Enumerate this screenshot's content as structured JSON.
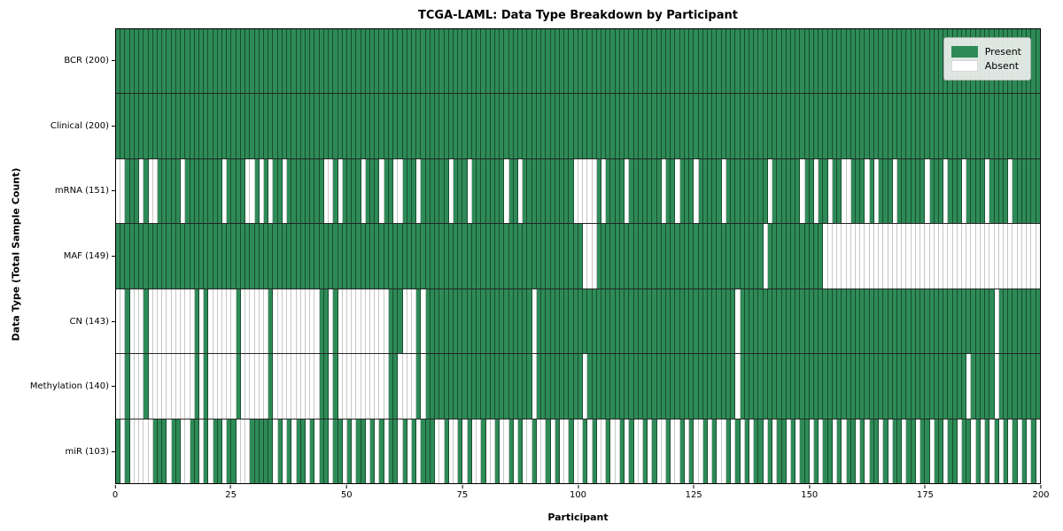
{
  "title": "TCGA-LAML: Data Type Breakdown by Participant",
  "x_axis": {
    "label": "Participant",
    "ticks": [
      0,
      25,
      50,
      75,
      100,
      125,
      150,
      175,
      200
    ],
    "min": 0,
    "max": 200
  },
  "y_axis": {
    "label": "Data Type (Total Sample Count)"
  },
  "legend": {
    "present_label": "Present",
    "absent_label": "Absent"
  },
  "colors": {
    "present": "#2e8b57",
    "absent": "#ffffff"
  },
  "chart_data": {
    "type": "heatmap",
    "title": "TCGA-LAML: Data Type Breakdown by Participant",
    "xlabel": "Participant",
    "ylabel": "Data Type (Total Sample Count)",
    "x_range": [
      0,
      200
    ],
    "x_ticks": [
      0,
      25,
      50,
      75,
      100,
      125,
      150,
      175,
      200
    ],
    "n_participants": 200,
    "legend_entries": [
      "Present",
      "Absent"
    ],
    "legend_position": "upper right",
    "grid": "per-cell vertical gridlines, horizontal row separators",
    "rows": [
      {
        "label": "BCR (200)",
        "data_type": "BCR",
        "present_count": 200,
        "absent_participants": []
      },
      {
        "label": "Clinical (200)",
        "data_type": "Clinical",
        "present_count": 200,
        "absent_participants": []
      },
      {
        "label": "mRNA (151)",
        "data_type": "mRNA",
        "present_count": 151,
        "absent_participants": [
          0,
          1,
          5,
          7,
          8,
          14,
          23,
          28,
          29,
          31,
          33,
          36,
          45,
          46,
          48,
          53,
          57,
          60,
          61,
          65,
          72,
          76,
          84,
          87,
          99,
          100,
          101,
          102,
          103,
          105,
          110,
          118,
          121,
          125,
          131,
          141,
          148,
          151,
          154,
          157,
          158,
          162,
          164,
          168,
          175,
          179,
          183,
          188,
          193
        ]
      },
      {
        "label": "MAF (149)",
        "data_type": "MAF",
        "present_count": 149,
        "absent_participants": [
          101,
          102,
          103,
          140,
          153,
          154,
          155,
          156,
          157,
          158,
          159,
          160,
          161,
          162,
          163,
          164,
          165,
          166,
          167,
          168,
          169,
          170,
          171,
          172,
          173,
          174,
          175,
          176,
          177,
          178,
          179,
          180,
          181,
          182,
          183,
          184,
          185,
          186,
          187,
          188,
          189,
          190,
          191,
          192,
          193,
          194,
          195,
          196,
          197,
          198,
          199
        ]
      },
      {
        "label": "CN (143)",
        "data_type": "CN",
        "present_count": 143,
        "absent_participants": [
          0,
          1,
          3,
          4,
          5,
          7,
          8,
          9,
          10,
          11,
          12,
          13,
          14,
          15,
          16,
          18,
          20,
          21,
          22,
          23,
          24,
          25,
          27,
          28,
          29,
          30,
          31,
          32,
          34,
          35,
          36,
          37,
          38,
          39,
          40,
          41,
          42,
          43,
          46,
          48,
          49,
          50,
          51,
          52,
          53,
          54,
          55,
          56,
          57,
          58,
          62,
          63,
          64,
          66,
          90,
          134,
          190
        ]
      },
      {
        "label": "Methylation (140)",
        "data_type": "Methylation",
        "present_count": 140,
        "absent_participants": [
          0,
          1,
          3,
          4,
          5,
          7,
          8,
          9,
          10,
          11,
          12,
          13,
          14,
          15,
          16,
          18,
          20,
          21,
          22,
          23,
          24,
          25,
          27,
          28,
          29,
          30,
          31,
          32,
          34,
          35,
          36,
          37,
          38,
          39,
          40,
          41,
          42,
          43,
          46,
          48,
          49,
          50,
          51,
          52,
          53,
          54,
          55,
          56,
          57,
          58,
          61,
          62,
          63,
          64,
          66,
          90,
          101,
          134,
          184,
          190
        ]
      },
      {
        "label": "miR (103)",
        "data_type": "miR",
        "present_count": 103,
        "absent_participants": [
          1,
          3,
          4,
          5,
          6,
          7,
          11,
          14,
          15,
          18,
          20,
          23,
          26,
          27,
          28,
          34,
          36,
          38,
          41,
          43,
          46,
          49,
          51,
          54,
          56,
          58,
          61,
          63,
          65,
          69,
          70,
          72,
          73,
          75,
          77,
          78,
          80,
          81,
          83,
          84,
          86,
          88,
          89,
          91,
          92,
          94,
          96,
          97,
          99,
          100,
          102,
          104,
          105,
          107,
          108,
          110,
          112,
          113,
          115,
          117,
          118,
          120,
          121,
          123,
          125,
          126,
          128,
          130,
          131,
          133,
          135,
          137,
          140,
          142,
          145,
          147,
          150,
          152,
          155,
          157,
          160,
          162,
          165,
          167,
          170,
          173,
          176,
          179,
          182,
          185,
          187,
          189,
          191,
          193,
          195,
          197,
          199
        ]
      }
    ]
  }
}
